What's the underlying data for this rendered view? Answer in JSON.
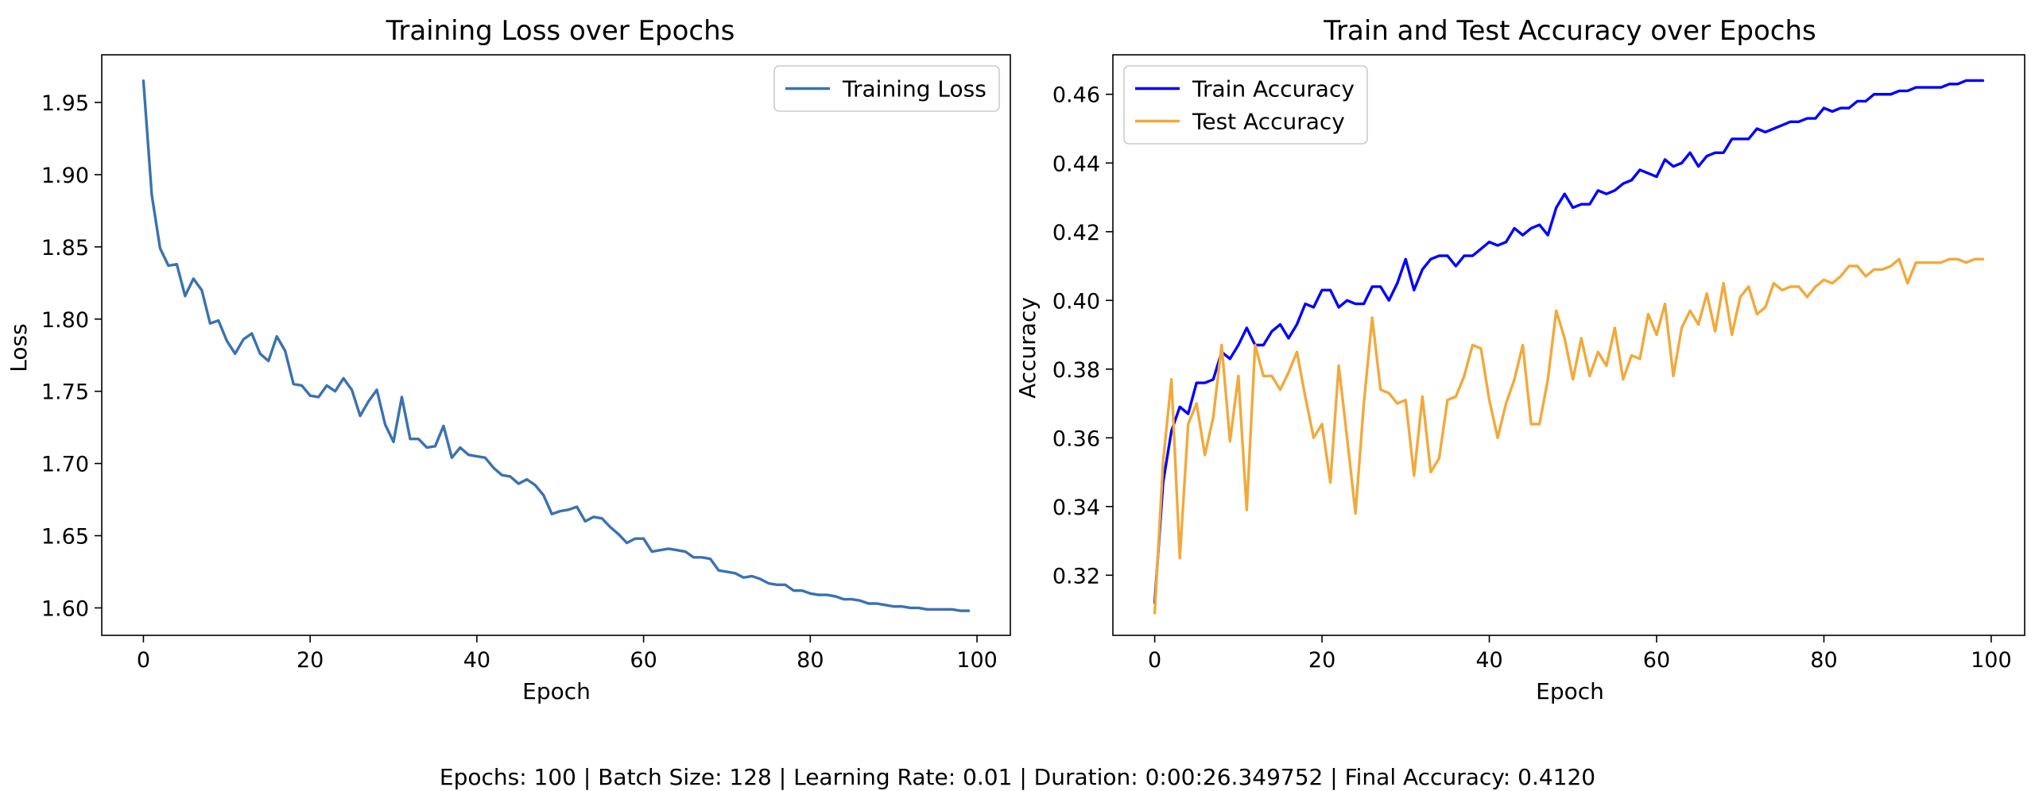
{
  "footer": "Epochs: 100 | Batch Size: 128 | Learning Rate: 0.01 | Duration: 0:00:26.349752 | Final Accuracy: 0.4120",
  "chart_data": [
    {
      "type": "line",
      "title": "Training Loss over Epochs",
      "xlabel": "Epoch",
      "ylabel": "Loss",
      "xlim": [
        -5,
        104
      ],
      "ylim": [
        1.581,
        1.983
      ],
      "xticks": [
        0,
        20,
        40,
        60,
        80,
        100
      ],
      "yticks": [
        1.6,
        1.65,
        1.7,
        1.75,
        1.8,
        1.85,
        1.9,
        1.95
      ],
      "ytick_decimals": 2,
      "grid": false,
      "legend": "top-right",
      "series": [
        {
          "name": "Training Loss",
          "color": "#3a72b0",
          "x_start": 0,
          "values": [
            1.965,
            1.886,
            1.849,
            1.837,
            1.838,
            1.816,
            1.828,
            1.82,
            1.797,
            1.799,
            1.785,
            1.776,
            1.786,
            1.79,
            1.776,
            1.771,
            1.788,
            1.778,
            1.755,
            1.754,
            1.747,
            1.746,
            1.754,
            1.75,
            1.759,
            1.751,
            1.733,
            1.743,
            1.751,
            1.727,
            1.715,
            1.746,
            1.717,
            1.717,
            1.711,
            1.712,
            1.726,
            1.704,
            1.711,
            1.706,
            1.705,
            1.704,
            1.697,
            1.692,
            1.691,
            1.686,
            1.689,
            1.685,
            1.678,
            1.665,
            1.667,
            1.668,
            1.67,
            1.66,
            1.663,
            1.662,
            1.656,
            1.651,
            1.645,
            1.648,
            1.648,
            1.639,
            1.64,
            1.641,
            1.64,
            1.639,
            1.635,
            1.635,
            1.634,
            1.626,
            1.625,
            1.624,
            1.621,
            1.622,
            1.62,
            1.617,
            1.616,
            1.616,
            1.612,
            1.612,
            1.61,
            1.609,
            1.609,
            1.608,
            1.606,
            1.606,
            1.605,
            1.603,
            1.603,
            1.602,
            1.601,
            1.601,
            1.6,
            1.6,
            1.599,
            1.599,
            1.599,
            1.599,
            1.598,
            1.598
          ]
        }
      ]
    },
    {
      "type": "line",
      "title": "Train and Test Accuracy over Epochs",
      "xlabel": "Epoch",
      "ylabel": "Accuracy",
      "xlim": [
        -5,
        104
      ],
      "ylim": [
        0.3025,
        0.4715
      ],
      "xticks": [
        0,
        20,
        40,
        60,
        80,
        100
      ],
      "yticks": [
        0.32,
        0.34,
        0.36,
        0.38,
        0.4,
        0.42,
        0.44,
        0.46
      ],
      "ytick_decimals": 2,
      "grid": false,
      "legend": "top-left",
      "series": [
        {
          "name": "Train Accuracy",
          "color": "#0000ff",
          "x_start": 0,
          "values": [
            0.312,
            0.347,
            0.362,
            0.369,
            0.367,
            0.376,
            0.376,
            0.377,
            0.385,
            0.383,
            0.387,
            0.392,
            0.387,
            0.387,
            0.391,
            0.393,
            0.389,
            0.393,
            0.399,
            0.398,
            0.403,
            0.403,
            0.398,
            0.4,
            0.399,
            0.399,
            0.404,
            0.404,
            0.4,
            0.405,
            0.412,
            0.403,
            0.409,
            0.412,
            0.413,
            0.413,
            0.41,
            0.413,
            0.413,
            0.415,
            0.417,
            0.416,
            0.417,
            0.421,
            0.419,
            0.421,
            0.422,
            0.419,
            0.427,
            0.431,
            0.427,
            0.428,
            0.428,
            0.432,
            0.431,
            0.432,
            0.434,
            0.435,
            0.438,
            0.437,
            0.436,
            0.441,
            0.439,
            0.44,
            0.443,
            0.439,
            0.442,
            0.443,
            0.443,
            0.447,
            0.447,
            0.447,
            0.45,
            0.449,
            0.45,
            0.451,
            0.452,
            0.452,
            0.453,
            0.453,
            0.456,
            0.455,
            0.456,
            0.456,
            0.458,
            0.458,
            0.46,
            0.46,
            0.46,
            0.461,
            0.461,
            0.462,
            0.462,
            0.462,
            0.462,
            0.463,
            0.463,
            0.464,
            0.464,
            0.464
          ]
        },
        {
          "name": "Test Accuracy",
          "color": "#f2a93b",
          "x_start": 0,
          "values": [
            0.309,
            0.353,
            0.377,
            0.325,
            0.364,
            0.37,
            0.355,
            0.366,
            0.387,
            0.359,
            0.378,
            0.339,
            0.387,
            0.378,
            0.378,
            0.374,
            0.379,
            0.385,
            0.372,
            0.36,
            0.364,
            0.347,
            0.381,
            0.36,
            0.338,
            0.37,
            0.395,
            0.374,
            0.373,
            0.37,
            0.371,
            0.349,
            0.372,
            0.35,
            0.354,
            0.371,
            0.372,
            0.378,
            0.387,
            0.386,
            0.371,
            0.36,
            0.37,
            0.377,
            0.387,
            0.364,
            0.364,
            0.377,
            0.397,
            0.389,
            0.377,
            0.389,
            0.378,
            0.385,
            0.381,
            0.392,
            0.377,
            0.384,
            0.383,
            0.396,
            0.39,
            0.399,
            0.378,
            0.392,
            0.397,
            0.393,
            0.402,
            0.391,
            0.405,
            0.39,
            0.401,
            0.404,
            0.396,
            0.398,
            0.405,
            0.403,
            0.404,
            0.404,
            0.401,
            0.404,
            0.406,
            0.405,
            0.407,
            0.41,
            0.41,
            0.407,
            0.409,
            0.409,
            0.41,
            0.412,
            0.405,
            0.411,
            0.411,
            0.411,
            0.411,
            0.412,
            0.412,
            0.411,
            0.412,
            0.412
          ]
        }
      ]
    }
  ]
}
